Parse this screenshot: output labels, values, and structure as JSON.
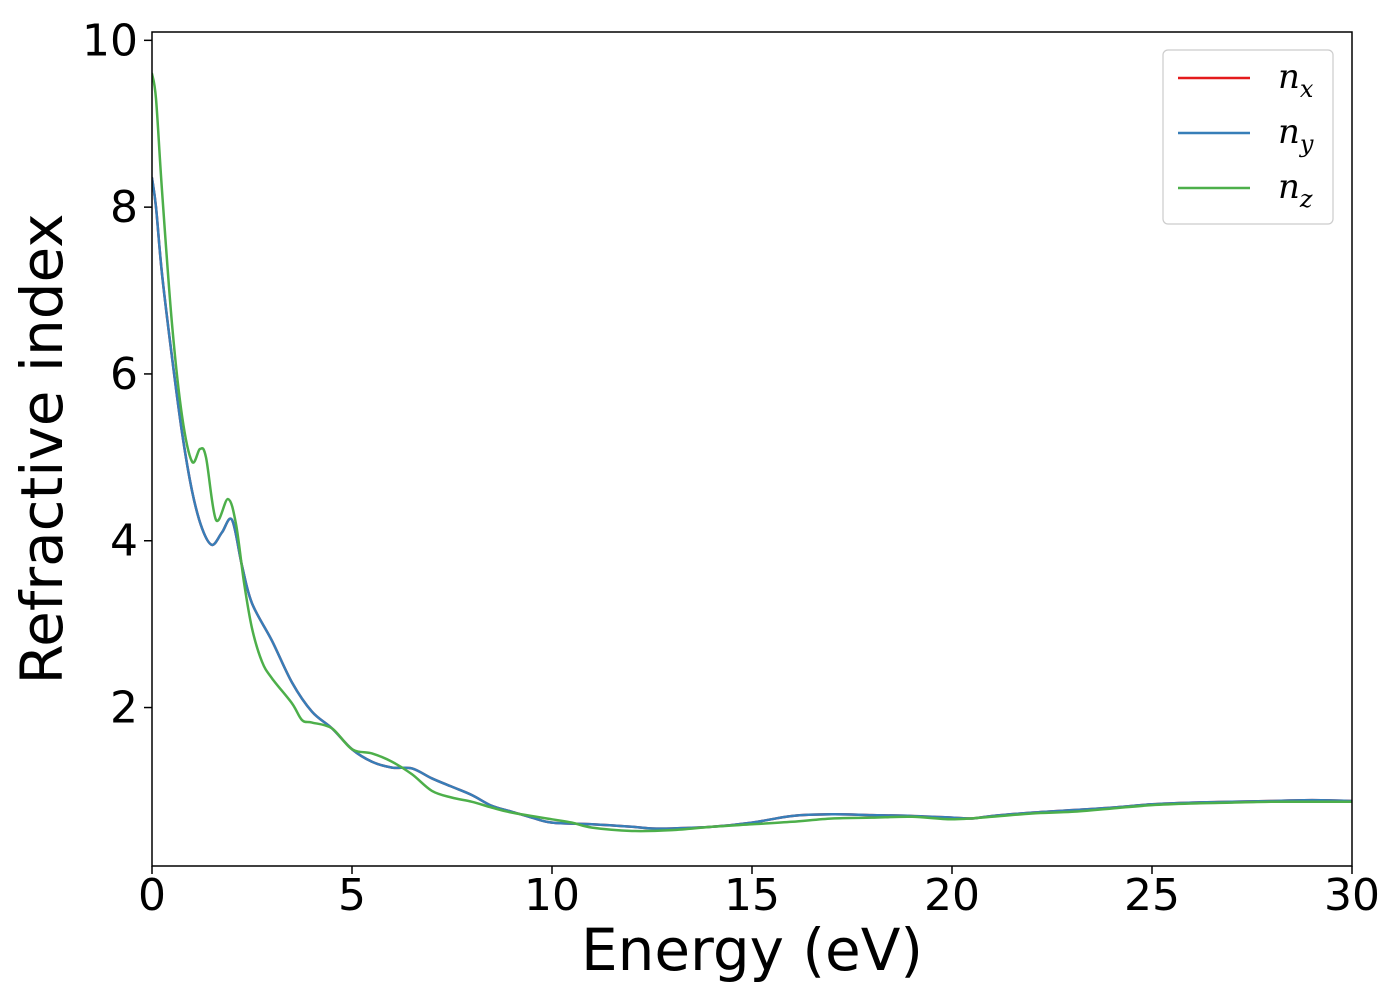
{
  "chart_data": {
    "type": "line",
    "xlabel": "Energy (eV)",
    "ylabel": "Refractive index",
    "xlim": [
      0,
      30
    ],
    "ylim": [
      0.1,
      10.1
    ],
    "xticks": [
      0,
      5,
      10,
      15,
      20,
      25,
      30
    ],
    "yticks": [
      2,
      4,
      6,
      8,
      10
    ],
    "grid": false,
    "legend_position": "top-right",
    "series": [
      {
        "name": "n",
        "subscript": "x",
        "color": "#e41a1c",
        "x": [
          0,
          0.1,
          0.25,
          0.5,
          0.75,
          1.0,
          1.25,
          1.5,
          1.75,
          2.0,
          2.25,
          2.5,
          3.0,
          3.5,
          4.0,
          4.5,
          5.0,
          5.5,
          6.0,
          6.5,
          7.0,
          7.5,
          8.0,
          8.5,
          9.0,
          9.5,
          10.0,
          11.0,
          12.0,
          12.5,
          13.0,
          14.0,
          15.0,
          16.0,
          17.0,
          18.0,
          19.0,
          20.0,
          20.5,
          21.0,
          22.0,
          23.0,
          24.0,
          25.0,
          26.0,
          27.0,
          28.0,
          29.0,
          30.0
        ],
        "y": [
          8.35,
          8.0,
          7.2,
          6.2,
          5.3,
          4.6,
          4.15,
          3.95,
          4.1,
          4.25,
          3.7,
          3.25,
          2.8,
          2.3,
          1.95,
          1.75,
          1.5,
          1.35,
          1.28,
          1.27,
          1.15,
          1.05,
          0.95,
          0.82,
          0.75,
          0.68,
          0.62,
          0.6,
          0.57,
          0.55,
          0.55,
          0.57,
          0.62,
          0.7,
          0.72,
          0.71,
          0.7,
          0.68,
          0.67,
          0.7,
          0.74,
          0.77,
          0.8,
          0.84,
          0.86,
          0.87,
          0.88,
          0.89,
          0.88
        ]
      },
      {
        "name": "n",
        "subscript": "y",
        "color": "#377eb8",
        "x": [
          0,
          0.1,
          0.25,
          0.5,
          0.75,
          1.0,
          1.25,
          1.5,
          1.75,
          2.0,
          2.25,
          2.5,
          3.0,
          3.5,
          4.0,
          4.5,
          5.0,
          5.5,
          6.0,
          6.5,
          7.0,
          7.5,
          8.0,
          8.5,
          9.0,
          9.5,
          10.0,
          11.0,
          12.0,
          12.5,
          13.0,
          14.0,
          15.0,
          16.0,
          17.0,
          18.0,
          19.0,
          20.0,
          20.5,
          21.0,
          22.0,
          23.0,
          24.0,
          25.0,
          26.0,
          27.0,
          28.0,
          29.0,
          30.0
        ],
        "y": [
          8.35,
          8.0,
          7.2,
          6.2,
          5.3,
          4.6,
          4.15,
          3.95,
          4.1,
          4.25,
          3.7,
          3.25,
          2.8,
          2.3,
          1.95,
          1.75,
          1.5,
          1.35,
          1.28,
          1.27,
          1.15,
          1.05,
          0.95,
          0.82,
          0.75,
          0.68,
          0.62,
          0.6,
          0.57,
          0.55,
          0.55,
          0.57,
          0.62,
          0.7,
          0.72,
          0.71,
          0.7,
          0.68,
          0.67,
          0.7,
          0.74,
          0.77,
          0.8,
          0.84,
          0.86,
          0.87,
          0.88,
          0.89,
          0.88
        ]
      },
      {
        "name": "n",
        "subscript": "z",
        "color": "#4daf4a",
        "x": [
          0,
          0.1,
          0.25,
          0.5,
          0.75,
          1.0,
          1.2,
          1.35,
          1.6,
          1.9,
          2.1,
          2.3,
          2.5,
          2.75,
          3.0,
          3.5,
          3.75,
          4.0,
          4.5,
          5.0,
          5.5,
          6.0,
          6.5,
          7.0,
          7.5,
          8.0,
          8.5,
          9.0,
          10.0,
          10.5,
          11.0,
          12.0,
          13.0,
          14.0,
          15.0,
          16.0,
          17.0,
          18.0,
          19.0,
          20.0,
          21.0,
          22.0,
          23.0,
          24.0,
          25.0,
          26.0,
          27.0,
          28.0,
          29.0,
          30.0
        ],
        "y": [
          9.6,
          9.3,
          8.2,
          6.6,
          5.5,
          4.95,
          5.1,
          5.0,
          4.25,
          4.5,
          4.2,
          3.5,
          2.95,
          2.55,
          2.35,
          2.05,
          1.85,
          1.82,
          1.75,
          1.5,
          1.45,
          1.35,
          1.2,
          1.0,
          0.92,
          0.87,
          0.8,
          0.74,
          0.66,
          0.62,
          0.56,
          0.52,
          0.53,
          0.57,
          0.6,
          0.63,
          0.67,
          0.68,
          0.69,
          0.66,
          0.69,
          0.73,
          0.75,
          0.79,
          0.83,
          0.85,
          0.86,
          0.87,
          0.87,
          0.87
        ]
      }
    ]
  }
}
